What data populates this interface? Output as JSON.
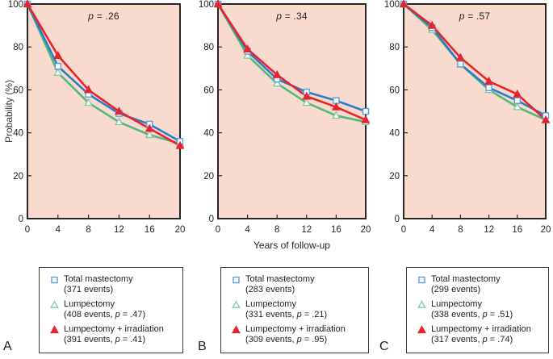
{
  "colors": {
    "plot_bg": "#f8dacf",
    "frame": "#2a2626",
    "marker_fill": "#ffffff",
    "total_mastectomy": "#2e7cc6",
    "total_mastectomy_marker": "#5a9edb",
    "lumpectomy": "#54b87c",
    "lumpectomy_marker": "#7fcaa2",
    "lumpectomy_irradiation": "#e7242b"
  },
  "axes": {
    "ylabel": "Probability (%)",
    "xlabel": "Years of follow-up"
  },
  "chart_data": [
    {
      "type": "line",
      "panel": "A",
      "p_label": "p",
      "p_value_text": " = .26",
      "x": [
        0,
        4,
        8,
        12,
        16,
        20
      ],
      "x_ticks": [
        0,
        4,
        8,
        12,
        16,
        20
      ],
      "y_ticks": [
        0,
        20,
        40,
        60,
        80,
        100
      ],
      "xlim": [
        0,
        20
      ],
      "ylim": [
        0,
        100
      ],
      "series": [
        {
          "key": "total-mastectomy",
          "name": "Total mastectomy",
          "marker": "open-square",
          "color": "#2e7cc6",
          "marker_color": "#5a9edb",
          "z": 1,
          "values": [
            100,
            71,
            58,
            49,
            44,
            36
          ]
        },
        {
          "key": "lumpectomy",
          "name": "Lumpectomy",
          "marker": "open-triangle",
          "color": "#54b87c",
          "marker_color": "#7fcaa2",
          "z": 0,
          "values": [
            100,
            68,
            54,
            45,
            39,
            35
          ]
        },
        {
          "key": "lumpectomy-irradiation",
          "name": "Lumpectomy + irradiation",
          "marker": "filled-triangle",
          "color": "#e7242b",
          "marker_color": "#e7242b",
          "z": 2,
          "values": [
            100,
            76,
            60,
            50,
            42,
            34
          ]
        }
      ],
      "legend": [
        {
          "label": "Total mastectomy",
          "events_prefix": "(371 events)",
          "p_label": "",
          "p_suffix": ""
        },
        {
          "label": "Lumpectomy",
          "events_prefix": "(408 events, ",
          "p_label": "p",
          "p_suffix": " = .47)"
        },
        {
          "label": "Lumpectomy + irradiation",
          "events_prefix": "(391 events, ",
          "p_label": "p",
          "p_suffix": " = .41)"
        }
      ]
    },
    {
      "type": "line",
      "panel": "B",
      "p_label": "p",
      "p_value_text": " = .34",
      "x": [
        0,
        4,
        8,
        12,
        16,
        20
      ],
      "x_ticks": [
        0,
        4,
        8,
        12,
        16,
        20
      ],
      "y_ticks": [
        0,
        20,
        40,
        60,
        80,
        100
      ],
      "xlim": [
        0,
        20
      ],
      "ylim": [
        0,
        100
      ],
      "series": [
        {
          "key": "total-mastectomy",
          "name": "Total mastectomy",
          "marker": "open-square",
          "color": "#2e7cc6",
          "marker_color": "#5a9edb",
          "z": 1,
          "values": [
            100,
            78,
            65,
            59,
            55,
            50
          ]
        },
        {
          "key": "lumpectomy",
          "name": "Lumpectomy",
          "marker": "open-triangle",
          "color": "#54b87c",
          "marker_color": "#7fcaa2",
          "z": 0,
          "values": [
            100,
            76,
            63,
            54,
            48,
            45
          ]
        },
        {
          "key": "lumpectomy-irradiation",
          "name": "Lumpectomy + irradiation",
          "marker": "filled-triangle",
          "color": "#e7242b",
          "marker_color": "#e7242b",
          "z": 2,
          "values": [
            100,
            79,
            67,
            57,
            52,
            46
          ]
        }
      ],
      "legend": [
        {
          "label": "Total mastectomy",
          "events_prefix": "(283 events)",
          "p_label": "",
          "p_suffix": ""
        },
        {
          "label": "Lumpectomy",
          "events_prefix": "(331 events, ",
          "p_label": "p",
          "p_suffix": " = .21)"
        },
        {
          "label": "Lumpectomy + irradiation",
          "events_prefix": "(309 events, ",
          "p_label": "p",
          "p_suffix": " = .95)"
        }
      ]
    },
    {
      "type": "line",
      "panel": "C",
      "p_label": "p",
      "p_value_text": " = .57",
      "x": [
        0,
        4,
        8,
        12,
        16,
        20
      ],
      "x_ticks": [
        0,
        4,
        8,
        12,
        16,
        20
      ],
      "y_ticks": [
        0,
        20,
        40,
        60,
        80,
        100
      ],
      "xlim": [
        0,
        20
      ],
      "ylim": [
        0,
        100
      ],
      "series": [
        {
          "key": "total-mastectomy",
          "name": "Total mastectomy",
          "marker": "open-square",
          "color": "#2e7cc6",
          "marker_color": "#5a9edb",
          "z": 1,
          "values": [
            100,
            89,
            72,
            61,
            55,
            48
          ]
        },
        {
          "key": "lumpectomy",
          "name": "Lumpectomy",
          "marker": "open-triangle",
          "color": "#54b87c",
          "marker_color": "#7fcaa2",
          "z": 0,
          "values": [
            100,
            88,
            72,
            60,
            52,
            46
          ]
        },
        {
          "key": "lumpectomy-irradiation",
          "name": "Lumpectomy + irradiation",
          "marker": "filled-triangle",
          "color": "#e7242b",
          "marker_color": "#e7242b",
          "z": 2,
          "values": [
            100,
            90,
            75,
            64,
            58,
            46
          ]
        }
      ],
      "legend": [
        {
          "label": "Total mastectomy",
          "events_prefix": "(299 events)",
          "p_label": "",
          "p_suffix": ""
        },
        {
          "label": "Lumpectomy",
          "events_prefix": "(338 events, ",
          "p_label": "p",
          "p_suffix": " = .51)"
        },
        {
          "label": "Lumpectomy + irradiation",
          "events_prefix": "(317 events, ",
          "p_label": "p",
          "p_suffix": " = .74)"
        }
      ]
    }
  ]
}
